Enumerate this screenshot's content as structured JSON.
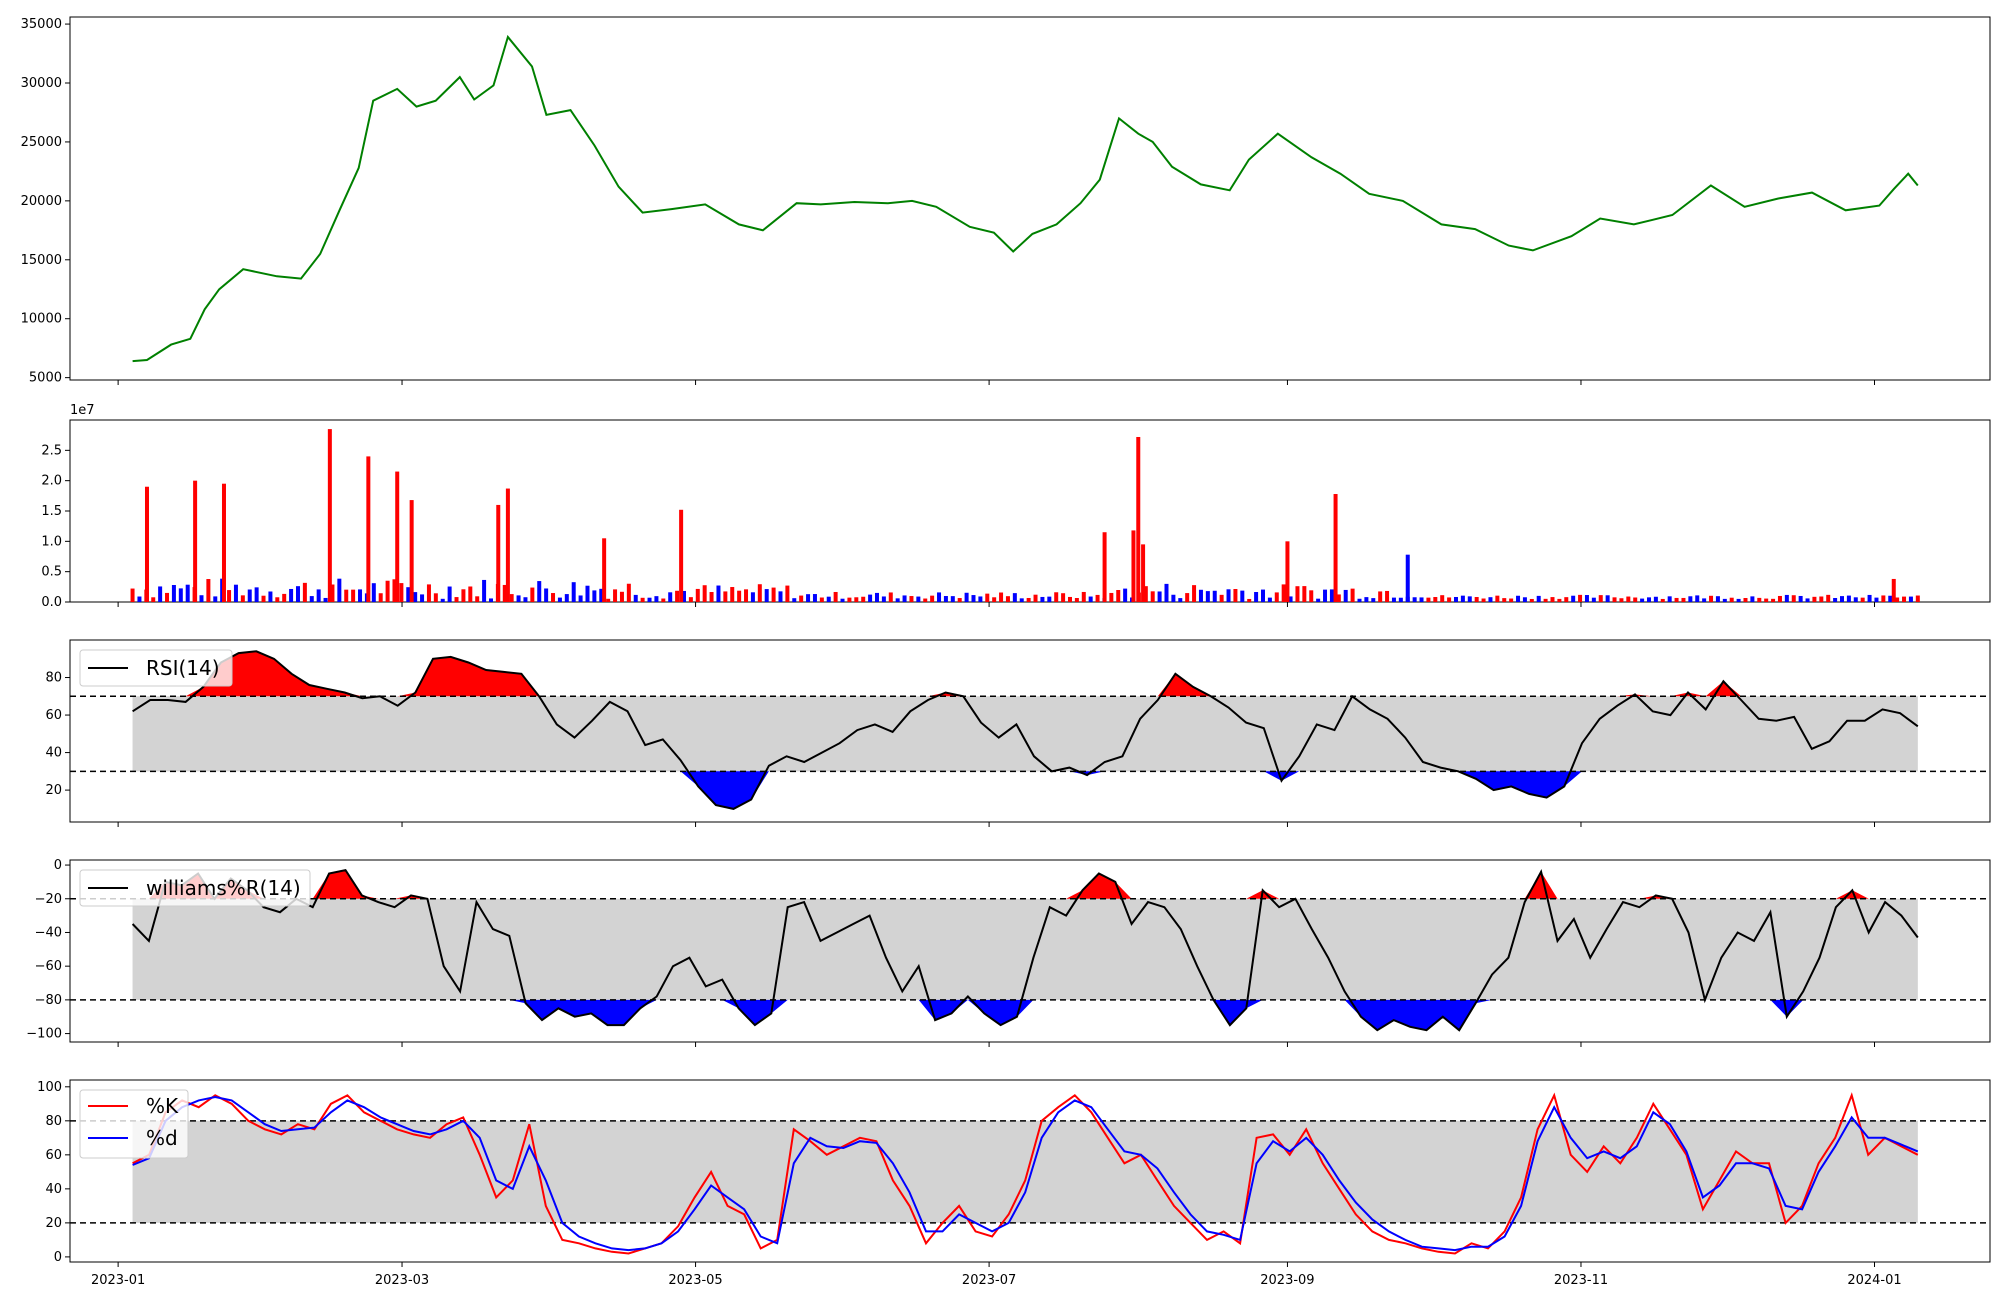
{
  "chart_data": [
    {
      "id": "price",
      "type": "line",
      "title": "",
      "xlabel": "",
      "ylabel": "",
      "x": [
        "2023-01-04",
        "2023-01-07",
        "2023-01-12",
        "2023-01-16",
        "2023-01-19",
        "2023-01-22",
        "2023-01-27",
        "2023-02-03",
        "2023-02-08",
        "2023-02-12",
        "2023-02-16",
        "2023-02-20",
        "2023-02-23",
        "2023-02-28",
        "2023-03-04",
        "2023-03-08",
        "2023-03-13",
        "2023-03-16",
        "2023-03-20",
        "2023-03-23",
        "2023-03-28",
        "2023-03-31",
        "2023-04-05",
        "2023-04-10",
        "2023-04-15",
        "2023-04-20",
        "2023-04-26",
        "2023-05-03",
        "2023-05-10",
        "2023-05-15",
        "2023-05-22",
        "2023-05-27",
        "2023-06-03",
        "2023-06-10",
        "2023-06-15",
        "2023-06-20",
        "2023-06-27",
        "2023-07-02",
        "2023-07-06",
        "2023-07-10",
        "2023-07-15",
        "2023-07-20",
        "2023-07-24",
        "2023-07-28",
        "2023-08-01",
        "2023-08-04",
        "2023-08-08",
        "2023-08-14",
        "2023-08-20",
        "2023-08-24",
        "2023-08-30",
        "2023-09-06",
        "2023-09-12",
        "2023-09-18",
        "2023-09-25",
        "2023-10-03",
        "2023-10-10",
        "2023-10-17",
        "2023-10-22",
        "2023-10-30",
        "2023-11-05",
        "2023-11-12",
        "2023-11-20",
        "2023-11-28",
        "2023-12-05",
        "2023-12-12",
        "2023-12-19",
        "2023-12-26",
        "2024-01-02",
        "2024-01-05",
        "2024-01-08",
        "2024-01-10"
      ],
      "values": [
        6400,
        6500,
        7800,
        8300,
        10800,
        12500,
        14200,
        13600,
        13400,
        15500,
        19200,
        22800,
        28500,
        29500,
        28000,
        28500,
        30500,
        28600,
        29800,
        33900,
        31400,
        27300,
        27700,
        24700,
        21200,
        19000,
        19300,
        19700,
        18000,
        17500,
        19800,
        19700,
        19900,
        19800,
        20000,
        19500,
        17800,
        17300,
        15700,
        17200,
        18000,
        19800,
        21800,
        27000,
        25700,
        25000,
        22900,
        21400,
        20900,
        23500,
        25700,
        23700,
        22300,
        20600,
        20000,
        18000,
        17600,
        16200,
        15800,
        17000,
        18500,
        18000,
        18800,
        21300,
        19500,
        20200,
        20700,
        19200,
        19600,
        21000,
        22300,
        21300
      ],
      "xlim": [
        "2022-12-22",
        "2024-01-25"
      ],
      "ylim": [
        4800,
        35600
      ],
      "yticks": [
        5000,
        10000,
        15000,
        20000,
        25000,
        30000,
        35000
      ],
      "ytick_labels": [
        "5000",
        "10000",
        "15000",
        "20000",
        "25000",
        "30000",
        "35000"
      ],
      "color": "#008000"
    },
    {
      "id": "volume",
      "type": "bar",
      "title": "",
      "xlabel": "",
      "ylabel": "",
      "scale_label": "1e7",
      "ylim": [
        0,
        3.0
      ],
      "yticks": [
        0,
        0.5,
        1.0,
        1.5,
        2.0,
        2.5
      ],
      "ytick_labels": [
        "0.0",
        "0.5",
        "1.0",
        "1.5",
        "2.0",
        "2.5"
      ],
      "key_bars": [
        {
          "x": "2023-01-07",
          "value": 1.9,
          "dir": "up"
        },
        {
          "x": "2023-01-17",
          "value": 2.0,
          "dir": "up"
        },
        {
          "x": "2023-01-23",
          "value": 1.95,
          "dir": "up"
        },
        {
          "x": "2023-02-14",
          "value": 2.85,
          "dir": "up"
        },
        {
          "x": "2023-02-22",
          "value": 2.4,
          "dir": "up"
        },
        {
          "x": "2023-02-28",
          "value": 2.15,
          "dir": "up"
        },
        {
          "x": "2023-03-03",
          "value": 1.68,
          "dir": "up"
        },
        {
          "x": "2023-03-23",
          "value": 1.87,
          "dir": "up"
        },
        {
          "x": "2023-03-21",
          "value": 1.6,
          "dir": "up"
        },
        {
          "x": "2023-04-12",
          "value": 1.05,
          "dir": "up"
        },
        {
          "x": "2023-04-28",
          "value": 1.52,
          "dir": "up"
        },
        {
          "x": "2023-07-25",
          "value": 1.15,
          "dir": "up"
        },
        {
          "x": "2023-07-31",
          "value": 1.18,
          "dir": "up"
        },
        {
          "x": "2023-08-01",
          "value": 2.72,
          "dir": "up"
        },
        {
          "x": "2023-08-02",
          "value": 0.95,
          "dir": "up"
        },
        {
          "x": "2023-09-01",
          "value": 1.0,
          "dir": "up"
        },
        {
          "x": "2023-09-11",
          "value": 1.78,
          "dir": "up"
        },
        {
          "x": "2023-09-26",
          "value": 0.78,
          "dir": "down"
        },
        {
          "x": "2024-01-05",
          "value": 0.38,
          "dir": "up"
        }
      ],
      "up_color": "#ff0000",
      "down_color": "#0000ff"
    },
    {
      "id": "rsi",
      "type": "line",
      "title": "",
      "series": [
        {
          "name": "RSI(14)"
        }
      ],
      "values": [
        62,
        68,
        68,
        67,
        75,
        88,
        93,
        94,
        90,
        82,
        76,
        74,
        72,
        69,
        70,
        65,
        72,
        90,
        91,
        88,
        84,
        83,
        82,
        70,
        55,
        48,
        57,
        67,
        62,
        44,
        47,
        36,
        22,
        12,
        10,
        15,
        33,
        38,
        35,
        40,
        45,
        52,
        55,
        51,
        62,
        68,
        72,
        70,
        56,
        48,
        55,
        38,
        30,
        32,
        28,
        35,
        38,
        58,
        68,
        82,
        75,
        70,
        64,
        56,
        53,
        25,
        38,
        55,
        52,
        70,
        63,
        58,
        48,
        35,
        32,
        30,
        26,
        20,
        22,
        18,
        16,
        22,
        45,
        58,
        65,
        71,
        62,
        60,
        72,
        63,
        78,
        68,
        58,
        57,
        59,
        42,
        46,
        57,
        57,
        63,
        61,
        54
      ],
      "ylim": [
        3,
        100
      ],
      "yticks": [
        20,
        40,
        60,
        80
      ],
      "ytick_labels": [
        "20",
        "40",
        "60",
        "80"
      ],
      "upper": 70,
      "lower": 30,
      "legend": "upper-left"
    },
    {
      "id": "willr",
      "type": "line",
      "title": "",
      "series": [
        {
          "name": "williams%R(14)"
        }
      ],
      "values": [
        -35,
        -45,
        -10,
        -12,
        -5,
        -20,
        -8,
        -15,
        -25,
        -28,
        -20,
        -25,
        -5,
        -3,
        -18,
        -22,
        -25,
        -18,
        -20,
        -60,
        -75,
        -22,
        -38,
        -42,
        -82,
        -92,
        -85,
        -90,
        -88,
        -95,
        -95,
        -85,
        -78,
        -60,
        -55,
        -72,
        -68,
        -85,
        -95,
        -88,
        -25,
        -22,
        -45,
        -40,
        -35,
        -30,
        -55,
        -75,
        -60,
        -92,
        -88,
        -78,
        -88,
        -95,
        -90,
        -55,
        -25,
        -30,
        -15,
        -5,
        -10,
        -35,
        -22,
        -25,
        -38,
        -60,
        -80,
        -95,
        -85,
        -15,
        -25,
        -20,
        -38,
        -55,
        -75,
        -90,
        -98,
        -92,
        -96,
        -98,
        -90,
        -98,
        -82,
        -65,
        -55,
        -22,
        -4,
        -45,
        -32,
        -55,
        -38,
        -22,
        -25,
        -18,
        -20,
        -40,
        -80,
        -55,
        -40,
        -45,
        -28,
        -90,
        -75,
        -55,
        -25,
        -15,
        -40,
        -22,
        -30,
        -43
      ],
      "ylim": [
        -105,
        3
      ],
      "yticks": [
        -100,
        -80,
        -60,
        -40,
        -20,
        0
      ],
      "ytick_labels": [
        "−100",
        "−80",
        "−60",
        "−40",
        "−20",
        "0"
      ],
      "upper": -20,
      "lower": -80,
      "legend": "upper-left"
    },
    {
      "id": "stoch",
      "type": "line",
      "title": "",
      "series": [
        {
          "name": "%K",
          "color": "#ff0000",
          "values": [
            55,
            60,
            85,
            92,
            88,
            95,
            90,
            80,
            75,
            72,
            78,
            75,
            90,
            95,
            85,
            80,
            75,
            72,
            70,
            78,
            82,
            60,
            35,
            45,
            78,
            30,
            10,
            8,
            5,
            3,
            2,
            5,
            8,
            18,
            35,
            50,
            30,
            25,
            5,
            10,
            75,
            68,
            60,
            65,
            70,
            68,
            45,
            30,
            8,
            20,
            30,
            15,
            12,
            25,
            45,
            80,
            88,
            95,
            85,
            70,
            55,
            60,
            45,
            30,
            20,
            10,
            15,
            8,
            70,
            72,
            60,
            75,
            55,
            40,
            25,
            15,
            10,
            8,
            5,
            3,
            2,
            8,
            5,
            15,
            35,
            75,
            95,
            60,
            50,
            65,
            55,
            70,
            90,
            75,
            60,
            28,
            45,
            62,
            55,
            55,
            20,
            30,
            55,
            70,
            95,
            60,
            70,
            65,
            60
          ]
        },
        {
          "name": "%d",
          "color": "#0000ff",
          "values": [
            54,
            58,
            80,
            88,
            92,
            94,
            92,
            85,
            78,
            74,
            75,
            76,
            85,
            92,
            88,
            82,
            78,
            74,
            72,
            75,
            80,
            70,
            45,
            40,
            65,
            45,
            20,
            12,
            8,
            5,
            4,
            5,
            8,
            15,
            28,
            42,
            35,
            28,
            12,
            8,
            55,
            70,
            65,
            64,
            68,
            67,
            55,
            38,
            15,
            15,
            25,
            20,
            15,
            20,
            38,
            70,
            85,
            92,
            88,
            75,
            62,
            60,
            52,
            38,
            25,
            15,
            13,
            10,
            55,
            68,
            62,
            70,
            60,
            45,
            32,
            22,
            15,
            10,
            6,
            5,
            4,
            6,
            6,
            12,
            30,
            68,
            88,
            70,
            58,
            62,
            58,
            65,
            85,
            78,
            62,
            35,
            42,
            55,
            55,
            52,
            30,
            28,
            50,
            65,
            82,
            70,
            70,
            66,
            62
          ]
        }
      ],
      "ylim": [
        -3,
        104
      ],
      "yticks": [
        0,
        20,
        40,
        60,
        80,
        100
      ],
      "ytick_labels": [
        "0",
        "20",
        "40",
        "60",
        "80",
        "100"
      ],
      "upper": 80,
      "lower": 20,
      "legend": "upper-left",
      "xticks": [
        "2023-01-01",
        "2023-03-01",
        "2023-05-01",
        "2023-07-01",
        "2023-09-01",
        "2023-11-01",
        "2024-01-01"
      ],
      "xtick_labels": [
        "2023-01",
        "2023-03",
        "2023-05",
        "2023-07",
        "2023-09",
        "2023-11",
        "2024-01"
      ]
    }
  ]
}
